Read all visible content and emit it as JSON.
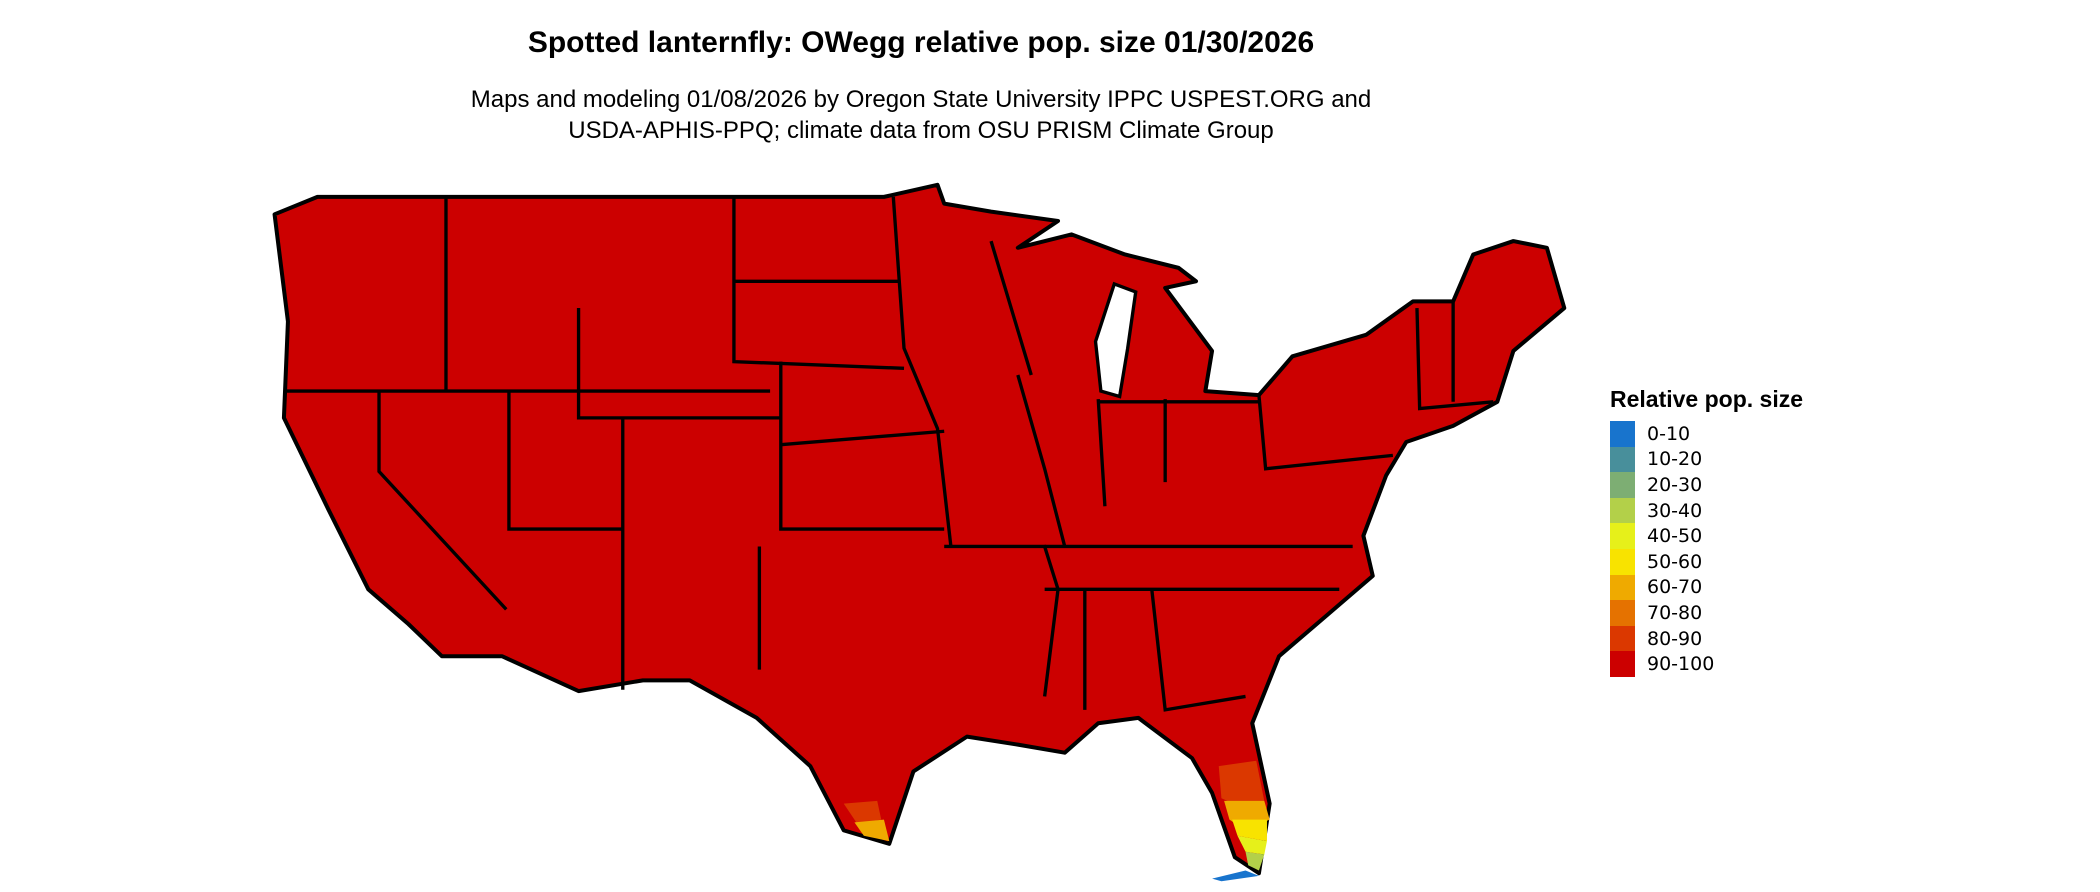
{
  "title": "Spotted lanternfly: OWegg relative pop. size 01/30/2026",
  "subtitle_line1": "Maps and modeling 01/08/2026 by Oregon State University IPPC USPEST.ORG and",
  "subtitle_line2": "USDA-APHIS-PPQ; climate data from OSU PRISM Climate Group",
  "map": {
    "region": "Contiguous United States",
    "dominant_class": "90-100",
    "notes_visible": "South Florida and South Texas tips show lower classes"
  },
  "legend": {
    "title": "Relative pop. size",
    "items": [
      {
        "label": "0-10",
        "color": "#1874CD"
      },
      {
        "label": "10-20",
        "color": "#488F9B"
      },
      {
        "label": "20-30",
        "color": "#7DAE73"
      },
      {
        "label": "30-40",
        "color": "#B3D049"
      },
      {
        "label": "40-50",
        "color": "#E6F01A"
      },
      {
        "label": "50-60",
        "color": "#F8E300"
      },
      {
        "label": "60-70",
        "color": "#EFAA00"
      },
      {
        "label": "70-80",
        "color": "#E57200"
      },
      {
        "label": "80-90",
        "color": "#DB3800"
      },
      {
        "label": "90-100",
        "color": "#CC0000"
      }
    ]
  }
}
